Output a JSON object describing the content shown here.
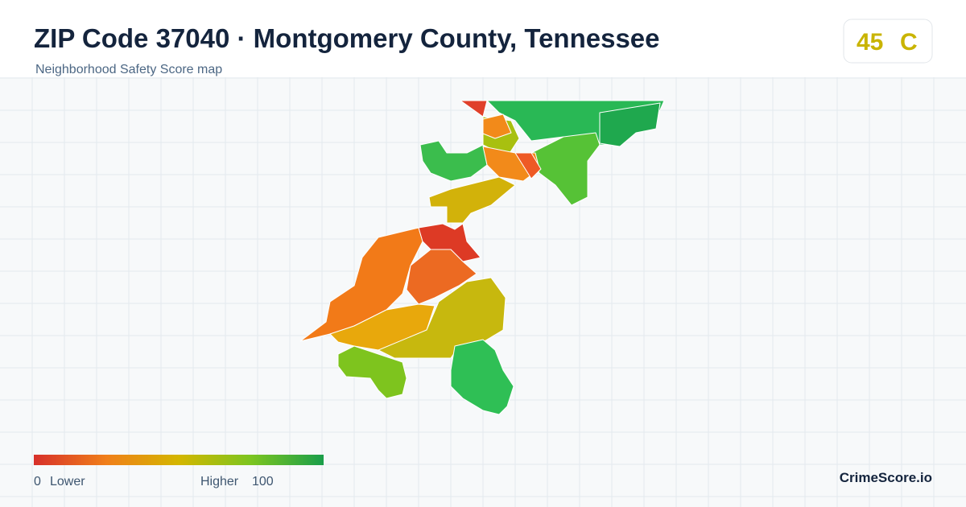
{
  "header": {
    "title": "ZIP Code 37040 · Montgomery County, Tennessee",
    "subtitle": "Neighborhood Safety Score map"
  },
  "badge": {
    "score": 45,
    "grade": "C"
  },
  "legend": {
    "min": 0,
    "min_label": "Lower",
    "max_label": "Higher",
    "max": 100
  },
  "brand": "CrimeScore.io"
}
